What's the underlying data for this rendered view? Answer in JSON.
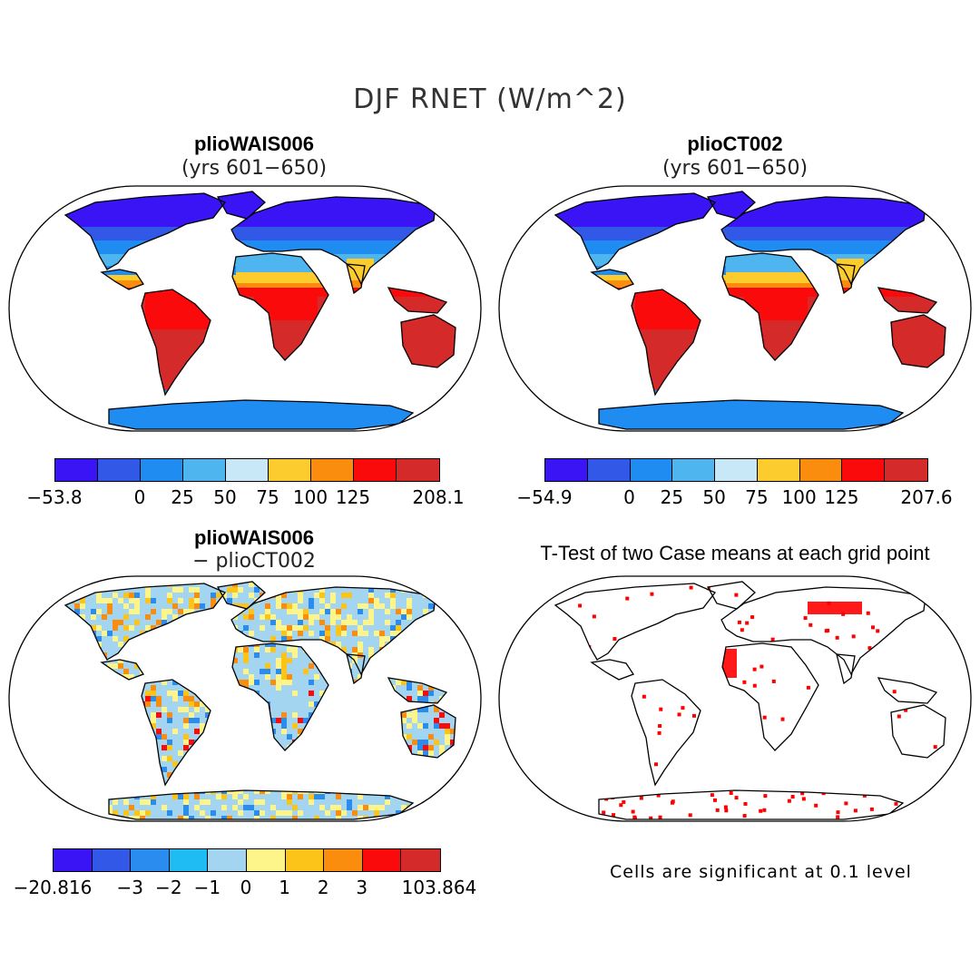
{
  "figure": {
    "title": "DJF RNET (W/m^2)"
  },
  "panels": [
    {
      "title": "plioWAIS006",
      "subtitle": "(yrs 601−650)",
      "colorbar": {
        "colors": [
          "#3a14f5",
          "#3158e6",
          "#1e8cf0",
          "#4fb5ef",
          "#c9e8f7",
          "#fccb2e",
          "#fa8c0e",
          "#fa0a0a",
          "#d42a2a"
        ],
        "tick_labels": [
          "−53.8",
          "0",
          "25",
          "50",
          "75",
          "100",
          "125",
          "208.1"
        ]
      }
    },
    {
      "title": "plioCT002",
      "subtitle": "(yrs 601−650)",
      "colorbar": {
        "colors": [
          "#3a14f5",
          "#3158e6",
          "#1e8cf0",
          "#4fb5ef",
          "#c9e8f7",
          "#fccb2e",
          "#fa8c0e",
          "#fa0a0a",
          "#d42a2a"
        ],
        "tick_labels": [
          "−54.9",
          "0",
          "25",
          "50",
          "75",
          "100",
          "125",
          "207.6"
        ]
      }
    },
    {
      "title": "plioWAIS006",
      "subtitle": "− plioCT002",
      "colorbar": {
        "colors": [
          "#3a14f5",
          "#3158e6",
          "#2a8cee",
          "#1ebcf3",
          "#a3d4f0",
          "#fdf58a",
          "#fcc418",
          "#fa8c0e",
          "#fa0a0a",
          "#d42a2a"
        ],
        "tick_labels": [
          "−20.816",
          "−3",
          "−2",
          "−1",
          "0",
          "1",
          "2",
          "3",
          "103.864"
        ]
      }
    },
    {
      "title": "T-Test of two Case means at each grid point",
      "note": "Cells are significant at 0.1 level",
      "significant_color": "#ff0000"
    }
  ]
}
